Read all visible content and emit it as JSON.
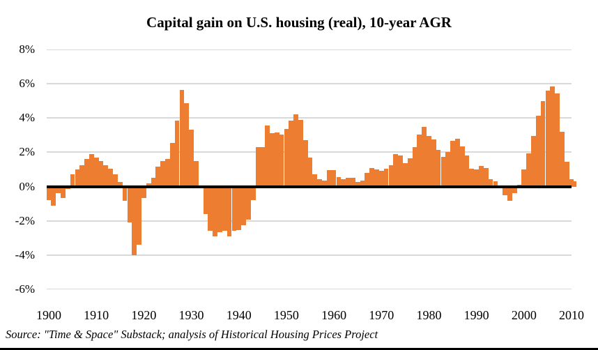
{
  "chart_data": {
    "type": "bar",
    "title": "Capital gain on U.S. housing (real), 10-year AGR",
    "source_note": "Source: \"Time & Space\" Substack; analysis of Historical Housing Prices Project",
    "xlabel": "",
    "ylabel": "",
    "x_start_year": 1900,
    "x_end_year": 2011,
    "values": [
      -0.8,
      -1.1,
      -0.4,
      -0.65,
      -0.15,
      0.7,
      1.0,
      1.25,
      1.6,
      1.9,
      1.7,
      1.5,
      1.25,
      1.05,
      0.7,
      0.25,
      -0.85,
      -2.1,
      -4.0,
      -3.4,
      -0.65,
      0.2,
      0.5,
      1.15,
      1.5,
      1.6,
      2.55,
      3.85,
      5.65,
      4.85,
      3.3,
      1.5,
      -0.1,
      -1.6,
      -2.6,
      -2.9,
      -2.65,
      -2.6,
      -2.9,
      -2.6,
      -2.55,
      -2.25,
      -1.95,
      -0.8,
      2.3,
      2.3,
      3.55,
      3.1,
      3.15,
      3.05,
      3.35,
      3.85,
      4.2,
      3.9,
      2.7,
      1.7,
      0.7,
      0.45,
      0.35,
      0.95,
      0.95,
      0.55,
      0.45,
      0.5,
      0.5,
      0.25,
      0.35,
      0.8,
      1.1,
      1.0,
      0.9,
      1.05,
      1.25,
      1.9,
      1.8,
      1.35,
      1.65,
      2.3,
      3.05,
      3.5,
      2.95,
      2.75,
      2.15,
      1.75,
      2.0,
      2.65,
      2.8,
      2.35,
      1.8,
      1.05,
      1.0,
      1.2,
      1.1,
      0.45,
      0.3,
      0.0,
      -0.5,
      -0.85,
      -0.4,
      0.1,
      1.0,
      1.95,
      2.95,
      4.15,
      5.0,
      5.6,
      5.85,
      5.45,
      3.2,
      1.45,
      0.45,
      0.3
    ],
    "ylim": [
      -6,
      8
    ],
    "y_tick_values": [
      8,
      6,
      4,
      2,
      0,
      -2,
      -4,
      -6
    ],
    "y_tick_labels": [
      "8%",
      "6%",
      "4%",
      "2%",
      "0%",
      "-2%",
      "-4%",
      "-6%"
    ],
    "x_tick_values": [
      1900,
      1910,
      1920,
      1930,
      1940,
      1950,
      1960,
      1970,
      1980,
      1990,
      2000,
      2010
    ],
    "x_tick_labels": [
      "1900",
      "1910",
      "1920",
      "1930",
      "1940",
      "1950",
      "1960",
      "1970",
      "1980",
      "1990",
      "2000",
      "2010"
    ],
    "grid": true,
    "legend": false,
    "colors": {
      "bar": "#ED7D31",
      "gridline": "#D9D9D9",
      "zero_line": "#000000",
      "text": "#000000",
      "background": "#FFFFFF"
    }
  }
}
